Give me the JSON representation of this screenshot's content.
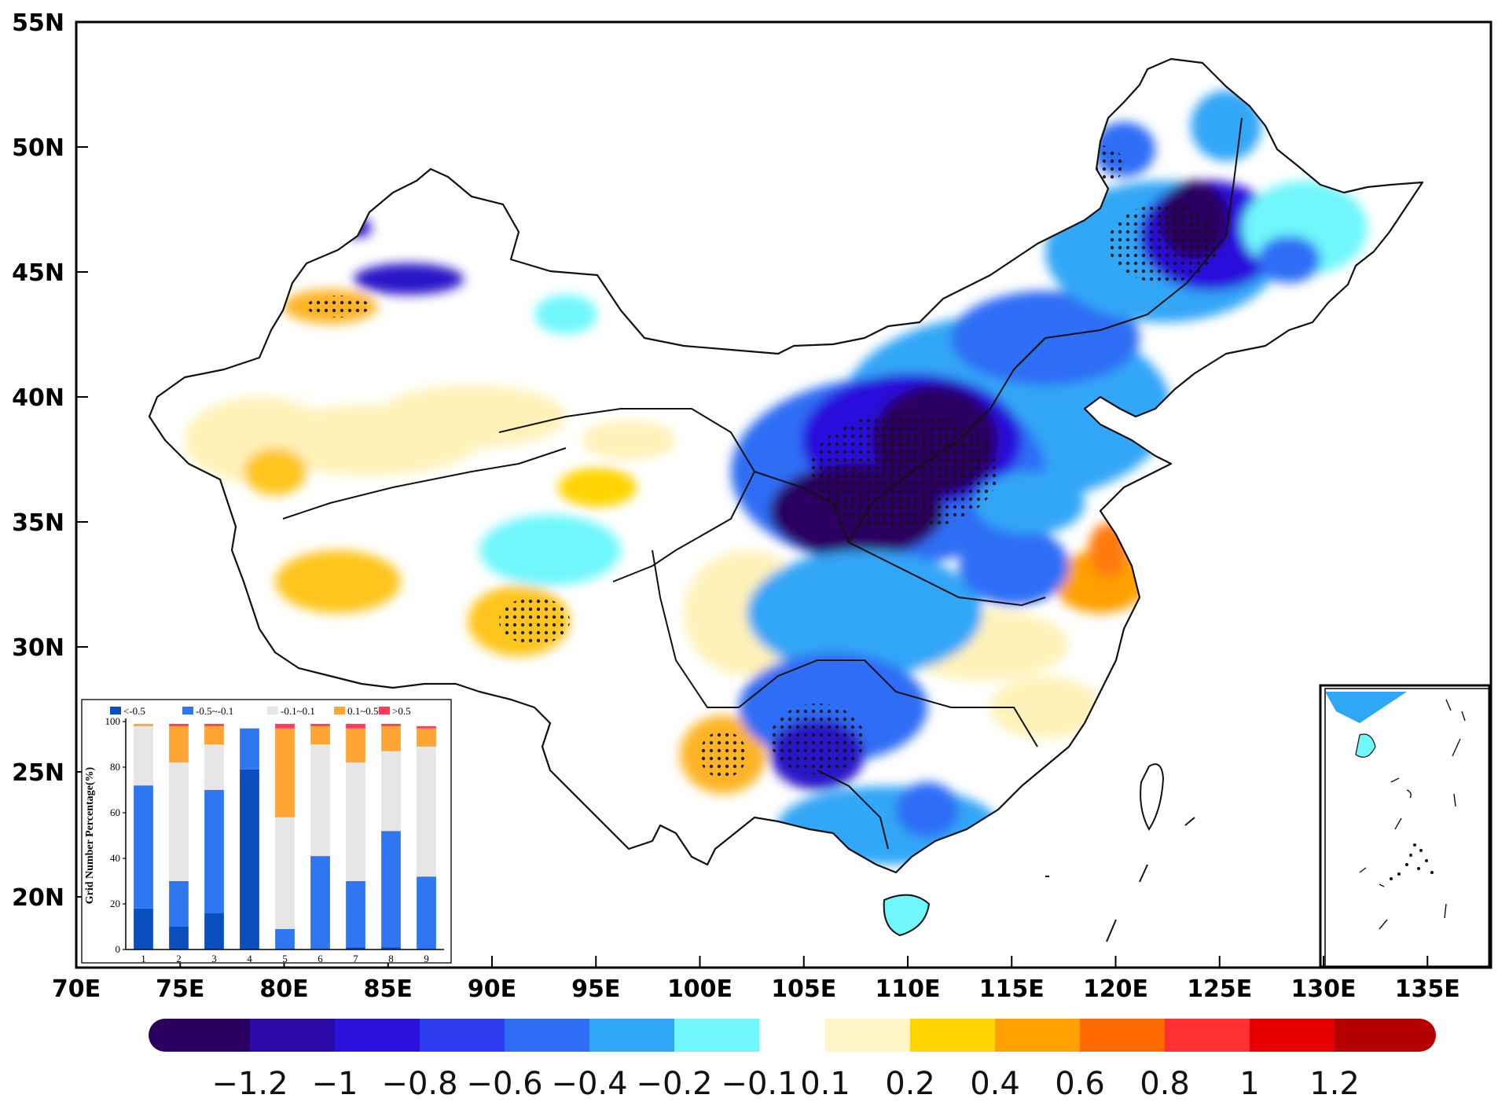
{
  "map": {
    "lat_labels": [
      "55N",
      "50N",
      "45N",
      "40N",
      "35N",
      "30N",
      "25N",
      "20N"
    ],
    "lon_labels": [
      "70E",
      "75E",
      "80E",
      "85E",
      "90E",
      "95E",
      "100E",
      "105E",
      "110E",
      "115E",
      "120E",
      "125E",
      "130E",
      "135E"
    ],
    "lon_range": [
      70,
      137
    ],
    "lat_range": [
      17,
      55
    ]
  },
  "colorbar": {
    "neg_labels": [
      "−1.2",
      "−1",
      "−0.8",
      "−0.6",
      "−0.4",
      "−0.2",
      "−0.1"
    ],
    "pos_labels": [
      "0.1",
      "0.2",
      "0.4",
      "0.6",
      "0.8",
      "1",
      "1.2"
    ],
    "neg_colors": [
      "#2a0060",
      "#2c0aa8",
      "#2c10dc",
      "#2e3cf0",
      "#2f6df5",
      "#30a6f7",
      "#6ff7fb"
    ],
    "pos_colors": [
      "#fff6c8",
      "#ffd400",
      "#ffa000",
      "#ff6a00",
      "#ff3030",
      "#e60000",
      "#b40000"
    ]
  },
  "chart_data": {
    "type": "bar",
    "stacked": true,
    "categories": [
      "1",
      "2",
      "3",
      "4",
      "5",
      "6",
      "7",
      "8",
      "9"
    ],
    "ylabel": "Grid Number Percentage(%)",
    "ylim": [
      0,
      100
    ],
    "yticks": [
      "0",
      "20",
      "40",
      "60",
      "80",
      "100"
    ],
    "legend_placement": "top",
    "series": [
      {
        "name": "<-0.5",
        "color": "#0b4fbf",
        "values": [
          18,
          10,
          16,
          79,
          0,
          0,
          1,
          1,
          0
        ]
      },
      {
        "name": "-0.5~-0.1",
        "color": "#2f77f0",
        "values": [
          54,
          20,
          54,
          18,
          9,
          41,
          29,
          51,
          32
        ]
      },
      {
        "name": "-0.1~0.1",
        "color": "#e6e6e6",
        "values": [
          26,
          52,
          20,
          0,
          49,
          49,
          52,
          35,
          57
        ]
      },
      {
        "name": "0.1~0.5",
        "color": "#ffa535",
        "values": [
          1,
          16,
          8,
          0,
          39,
          8,
          15,
          11,
          8
        ]
      },
      {
        "name": ">0.5",
        "color": "#ff3b5a",
        "values": [
          0,
          1,
          1,
          0,
          2,
          1,
          2,
          1,
          1
        ]
      }
    ]
  }
}
